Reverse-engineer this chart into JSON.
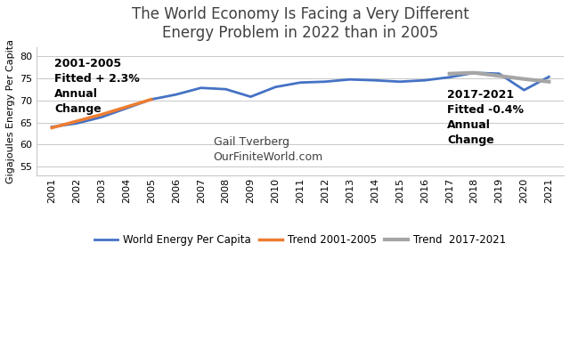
{
  "title": "The World Economy Is Facing a Very Different\nEnergy Problem in 2022 than in 2005",
  "ylabel": "Gigajoules Energy Per Capita",
  "years": [
    2001,
    2002,
    2003,
    2004,
    2005,
    2006,
    2007,
    2008,
    2009,
    2010,
    2011,
    2012,
    2013,
    2014,
    2015,
    2016,
    2017,
    2018,
    2019,
    2020,
    2021
  ],
  "world_energy": [
    64.0,
    64.8,
    66.2,
    68.2,
    70.2,
    71.3,
    72.8,
    72.5,
    70.8,
    73.0,
    74.0,
    74.2,
    74.7,
    74.5,
    74.2,
    74.5,
    75.2,
    76.2,
    76.0,
    72.3,
    75.3
  ],
  "trend_2001_2005_years": [
    2001,
    2002,
    2003,
    2004,
    2005
  ],
  "trend_2001_2005_values": [
    63.8,
    65.3,
    66.8,
    68.5,
    70.2
  ],
  "trend_2017_2021_years": [
    2017,
    2018,
    2019,
    2020,
    2021
  ],
  "trend_2017_2021_values": [
    76.0,
    76.2,
    75.5,
    74.8,
    74.2
  ],
  "ylim": [
    53,
    82
  ],
  "yticks": [
    55,
    60,
    65,
    70,
    75,
    80
  ],
  "line_color_main": "#4472C4",
  "line_color_trend1": "#ED7D31",
  "line_color_trend2": "#A5A5A5",
  "annotation1_text": "2001-2005\nFitted + 2.3%\nAnnual\nChange",
  "annotation2_text": "2017-2021\nFitted -0.4%\nAnnual\nChange",
  "watermark_line1": "Gail Tverberg",
  "watermark_line2": "OurFiniteWorld.com",
  "legend_labels": [
    "World Energy Per Capita",
    "Trend 2001-2005",
    "Trend  2017-2021"
  ],
  "background_color": "#FFFFFF",
  "title_fontsize": 12,
  "ylabel_fontsize": 8,
  "tick_fontsize": 8,
  "annotation_fontsize": 9,
  "watermark_fontsize": 9
}
